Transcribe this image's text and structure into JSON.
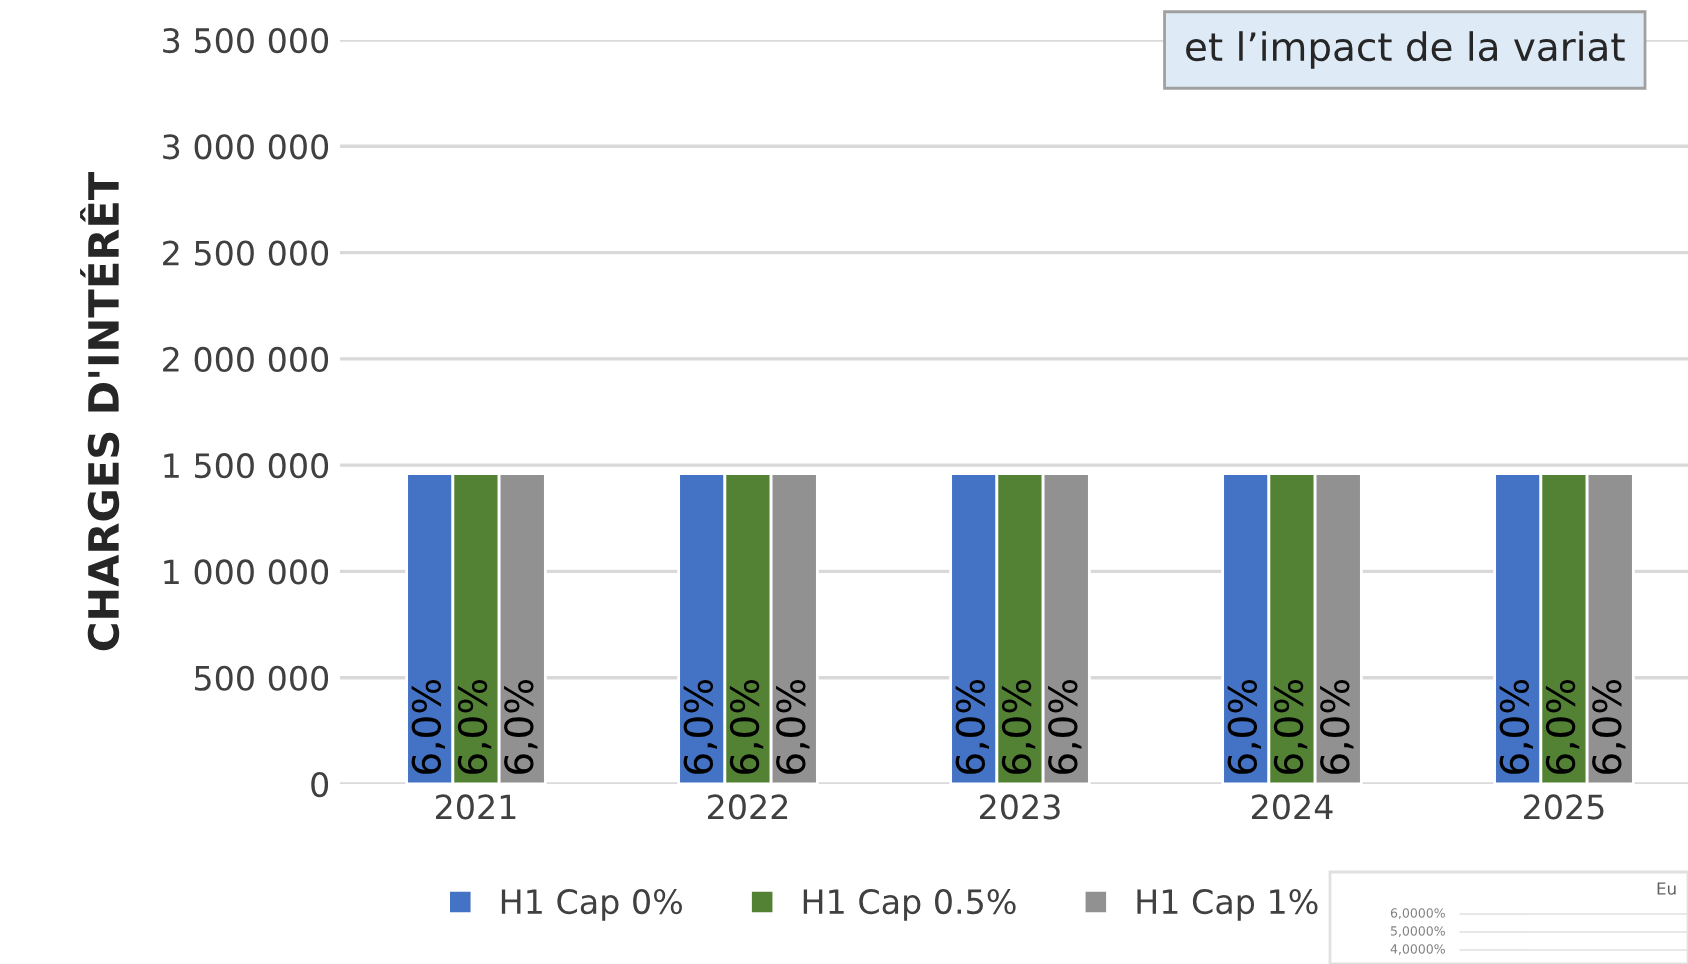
{
  "chart_data": {
    "type": "bar",
    "ylabel": "CHARGES D'INTÉRÊT",
    "categories": [
      "2021",
      "2022",
      "2023",
      "2024",
      "2025"
    ],
    "series": [
      {
        "name": "H1 Cap 0%",
        "color": "#4472c4",
        "values": [
          1460000,
          1460000,
          1460000,
          1460000,
          1460000
        ]
      },
      {
        "name": "H1 Cap 0.5%",
        "color": "#548235",
        "values": [
          1460000,
          1460000,
          1460000,
          1460000,
          1460000
        ]
      },
      {
        "name": "H1 Cap 1%",
        "color": "#919191",
        "values": [
          1460000,
          1460000,
          1460000,
          1460000,
          1460000
        ]
      }
    ],
    "ylim": [
      0,
      3500000
    ],
    "yticks": [
      {
        "value": 0,
        "label": "0"
      },
      {
        "value": 500000,
        "label": "500 000"
      },
      {
        "value": 1000000,
        "label": "1 000 000"
      },
      {
        "value": 1500000,
        "label": "1 500 000"
      },
      {
        "value": 2000000,
        "label": "2 000 000"
      },
      {
        "value": 2500000,
        "label": "2 500 000"
      },
      {
        "value": 3000000,
        "label": "3 000 000"
      },
      {
        "value": 3500000,
        "label": "3 500 000"
      }
    ],
    "grid": "y",
    "legend": "bottom",
    "annotations": [
      "et l’impact de la variat",
      "Eu",
      "6,0000%",
      "5,0000%",
      "4,0000%",
      "6,0%",
      "6,0%",
      "6,0%",
      "6,0%",
      "6,0%",
      "6,0%",
      "6,0%",
      "6,0%",
      "6,0%",
      "6,0%",
      "6,0%",
      "6,0%",
      "6,0%",
      "6,0%",
      "6,0%"
    ]
  }
}
